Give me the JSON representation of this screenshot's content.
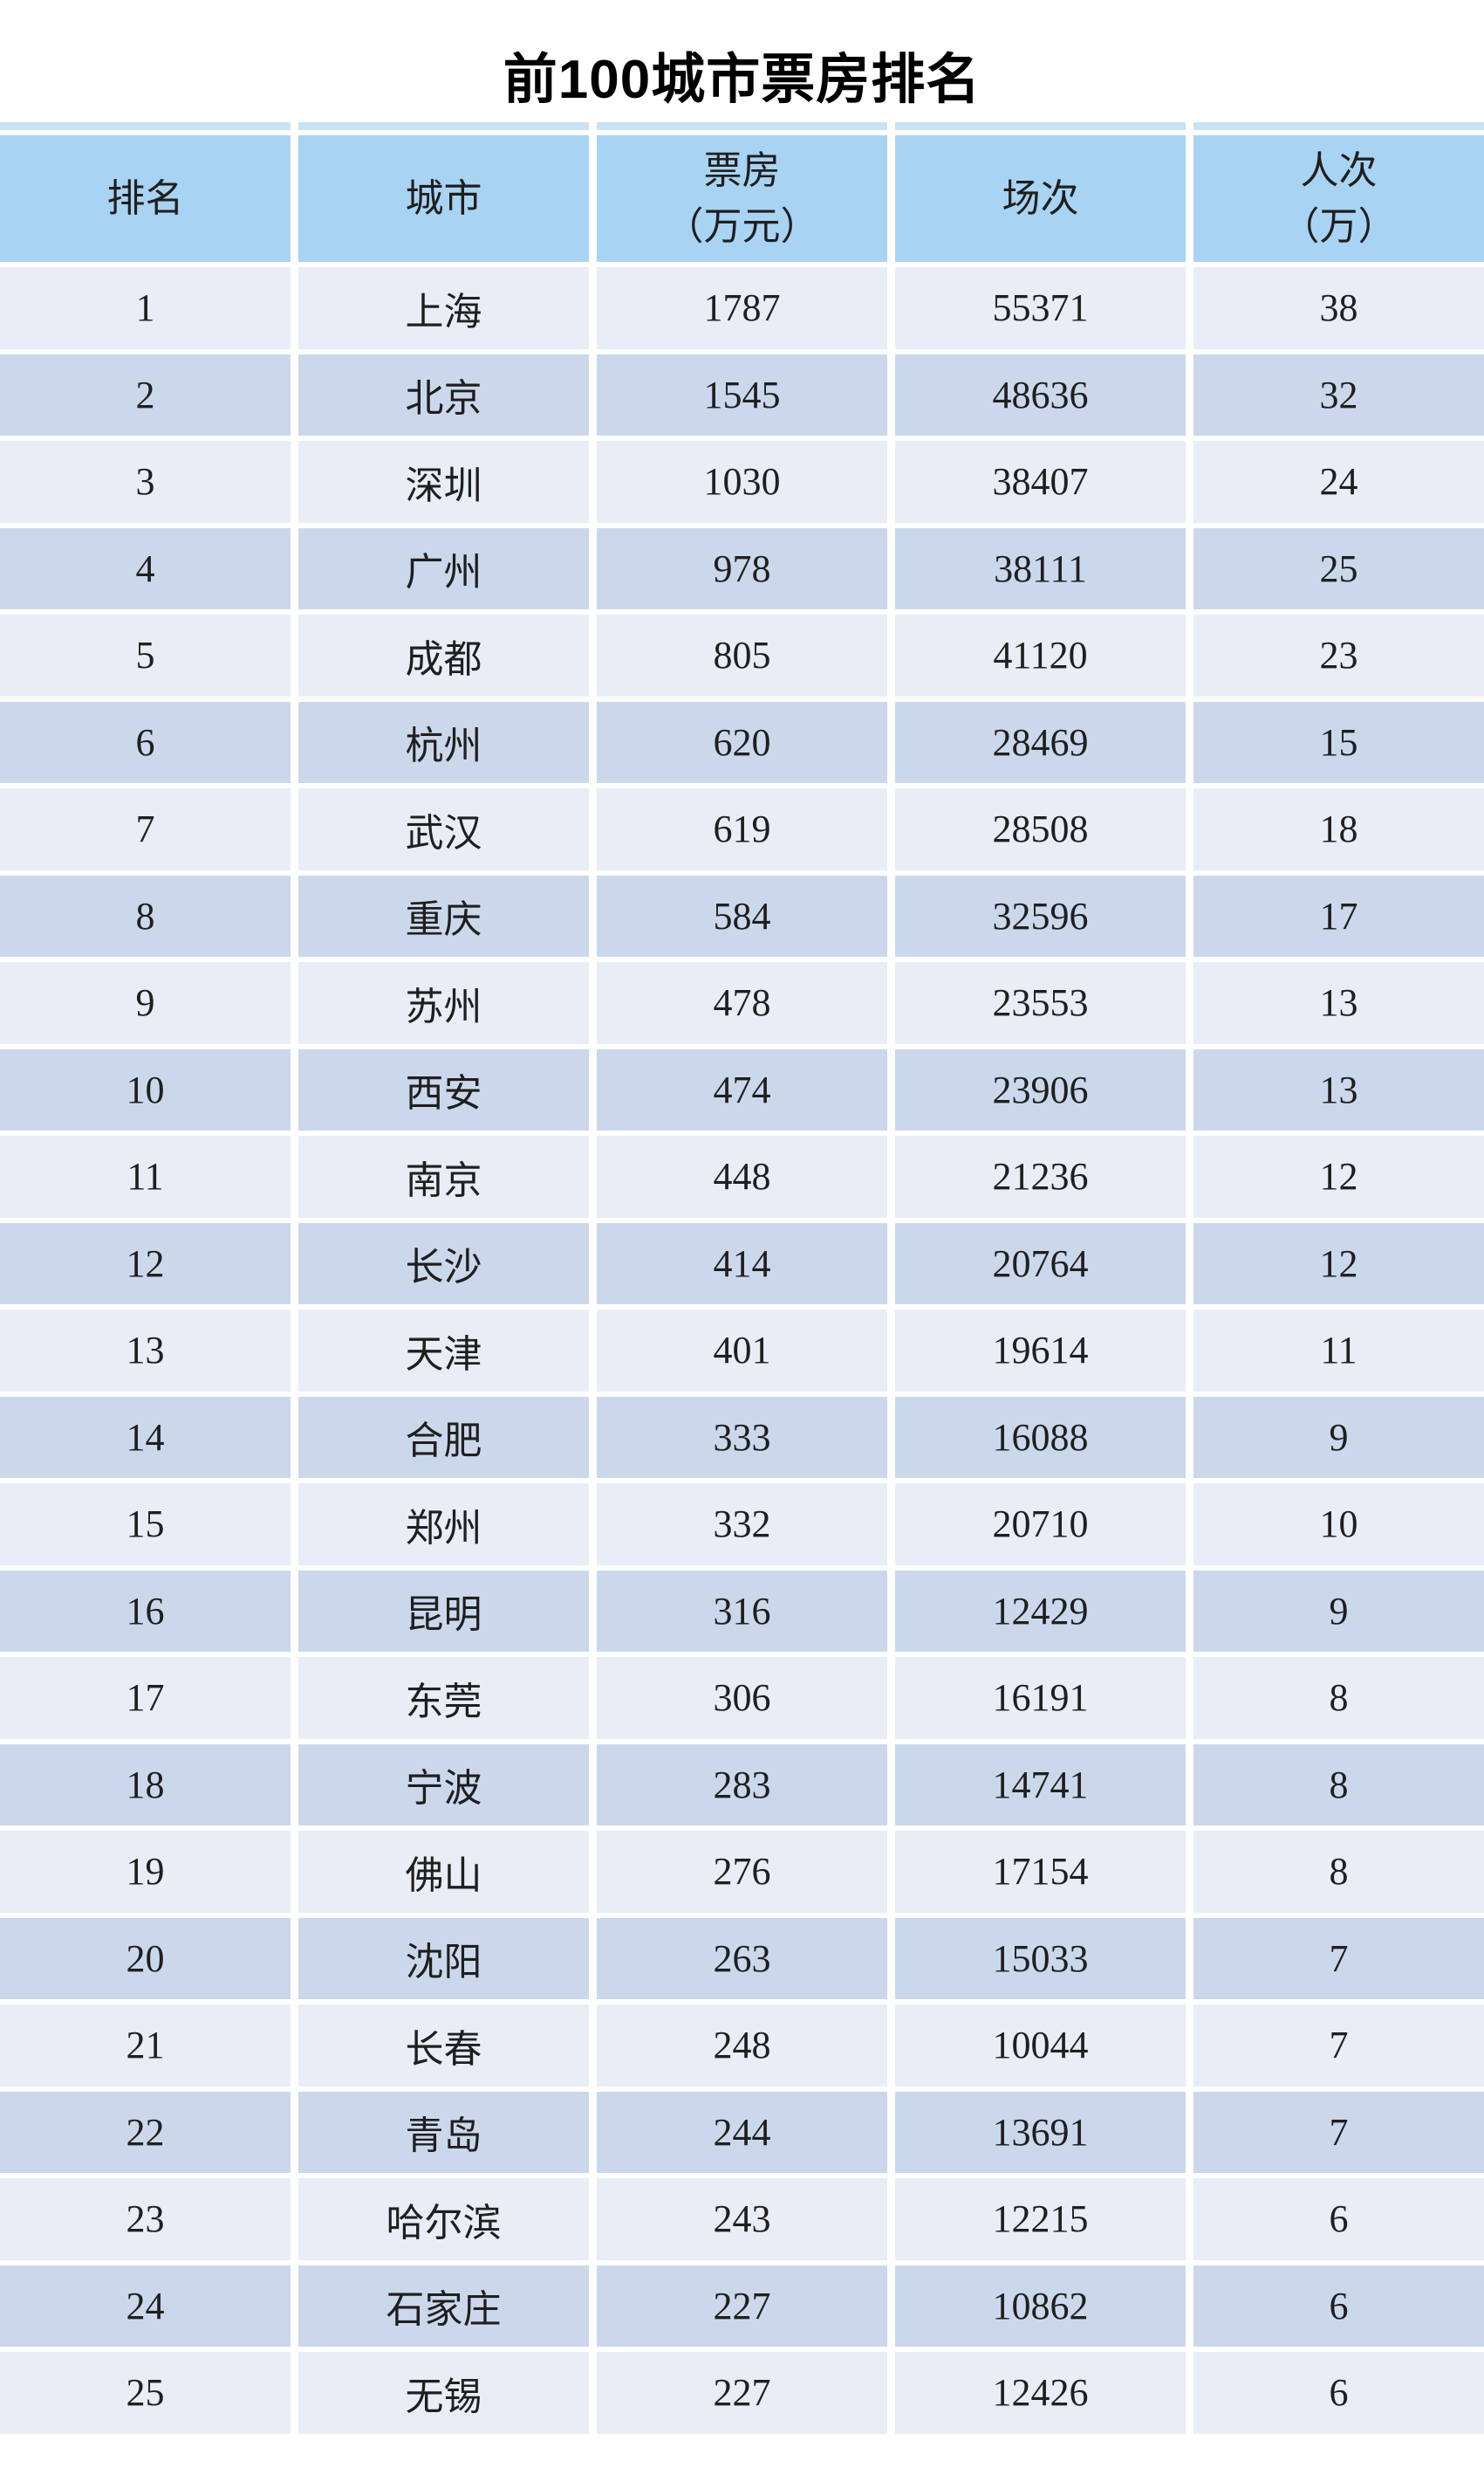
{
  "title": "前100城市票房排名",
  "colors": {
    "header_blue": "#a9d3f2",
    "row_light": "#e9edf6",
    "row_dark": "#cbd8ec",
    "top_strip_blue": "#c9e2f6",
    "text": "#1f1f1f",
    "title_text": "#000000",
    "background": "#ffffff"
  },
  "chart_data": {
    "type": "table",
    "title": "前100城市票房排名",
    "columns": [
      "排名",
      "城市",
      "票房\n（万元）",
      "场次",
      "人次\n（万）"
    ],
    "column_names_flat": [
      "排名",
      "城市",
      "票房（万元）",
      "场次",
      "人次（万）"
    ],
    "rows": [
      [
        "1",
        "上海",
        "1787",
        "55371",
        "38"
      ],
      [
        "2",
        "北京",
        "1545",
        "48636",
        "32"
      ],
      [
        "3",
        "深圳",
        "1030",
        "38407",
        "24"
      ],
      [
        "4",
        "广州",
        "978",
        "38111",
        "25"
      ],
      [
        "5",
        "成都",
        "805",
        "41120",
        "23"
      ],
      [
        "6",
        "杭州",
        "620",
        "28469",
        "15"
      ],
      [
        "7",
        "武汉",
        "619",
        "28508",
        "18"
      ],
      [
        "8",
        "重庆",
        "584",
        "32596",
        "17"
      ],
      [
        "9",
        "苏州",
        "478",
        "23553",
        "13"
      ],
      [
        "10",
        "西安",
        "474",
        "23906",
        "13"
      ],
      [
        "11",
        "南京",
        "448",
        "21236",
        "12"
      ],
      [
        "12",
        "长沙",
        "414",
        "20764",
        "12"
      ],
      [
        "13",
        "天津",
        "401",
        "19614",
        "11"
      ],
      [
        "14",
        "合肥",
        "333",
        "16088",
        "9"
      ],
      [
        "15",
        "郑州",
        "332",
        "20710",
        "10"
      ],
      [
        "16",
        "昆明",
        "316",
        "12429",
        "9"
      ],
      [
        "17",
        "东莞",
        "306",
        "16191",
        "8"
      ],
      [
        "18",
        "宁波",
        "283",
        "14741",
        "8"
      ],
      [
        "19",
        "佛山",
        "276",
        "17154",
        "8"
      ],
      [
        "20",
        "沈阳",
        "263",
        "15033",
        "7"
      ],
      [
        "21",
        "长春",
        "248",
        "10044",
        "7"
      ],
      [
        "22",
        "青岛",
        "244",
        "13691",
        "7"
      ],
      [
        "23",
        "哈尔滨",
        "243",
        "12215",
        "6"
      ],
      [
        "24",
        "石家庄",
        "227",
        "10862",
        "6"
      ],
      [
        "25",
        "无锡",
        "227",
        "12426",
        "6"
      ]
    ]
  }
}
